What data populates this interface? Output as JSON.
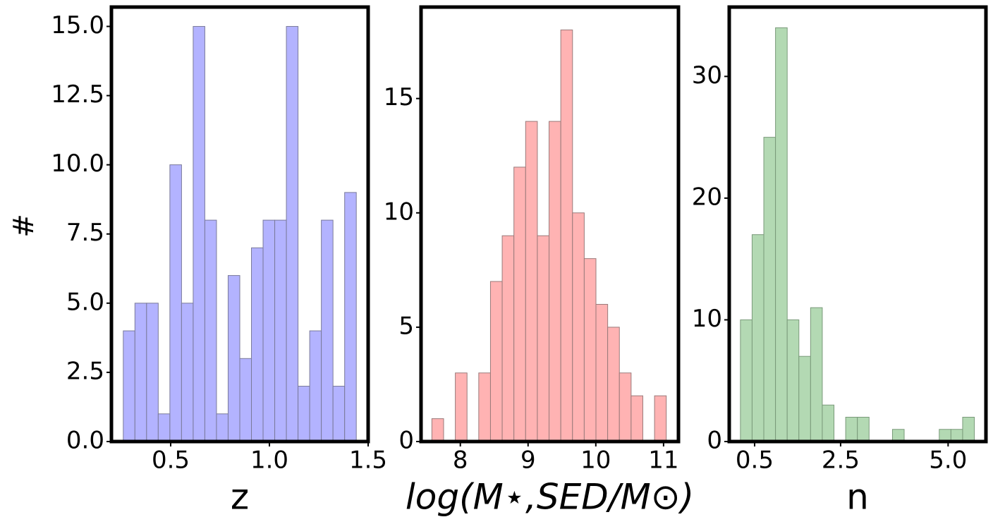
{
  "chart_data": [
    {
      "type": "histogram",
      "x_label": "z",
      "y_label": "#",
      "color": "#b3b3ff",
      "edgecolor": "#7a7a9a",
      "bins": [
        0.26,
        0.319,
        0.378,
        0.437,
        0.496,
        0.555,
        0.614,
        0.673,
        0.732,
        0.791,
        0.85,
        0.909,
        0.968,
        1.027,
        1.086,
        1.145,
        1.204,
        1.263,
        1.322,
        1.381,
        1.44
      ],
      "values": [
        4,
        5,
        5,
        1,
        10,
        5,
        15,
        8,
        1,
        6,
        3,
        7,
        8,
        8,
        15,
        2,
        4,
        8,
        2,
        9
      ],
      "xlim": [
        0.2,
        1.5
      ],
      "ylim": [
        0,
        15.7
      ],
      "xticks": [
        {
          "value": 0.5,
          "label": "0.5"
        },
        {
          "value": 1.0,
          "label": "1.0"
        },
        {
          "value": 1.5,
          "label": "1.5"
        }
      ],
      "yticks": [
        {
          "value": 0,
          "label": "0.0"
        },
        {
          "value": 2.5,
          "label": "2.5"
        },
        {
          "value": 5,
          "label": "5.0"
        },
        {
          "value": 7.5,
          "label": "7.5"
        },
        {
          "value": 10,
          "label": "10.0"
        },
        {
          "value": 12.5,
          "label": "12.5"
        },
        {
          "value": 15,
          "label": "15.0"
        }
      ]
    },
    {
      "type": "histogram",
      "x_label": "log(M⋆,SED/M⊙)",
      "color": "#ffb3b3",
      "edgecolor": "#9a7a7a",
      "bins": [
        7.58,
        7.753,
        7.926,
        8.099,
        8.272,
        8.445,
        8.618,
        8.791,
        8.964,
        9.137,
        9.31,
        9.483,
        9.656,
        9.829,
        10.002,
        10.175,
        10.348,
        10.521,
        10.694,
        10.867,
        11.04
      ],
      "values": [
        1,
        0,
        3,
        0,
        3,
        7,
        9,
        12,
        14,
        9,
        14,
        18,
        10,
        8,
        6,
        5,
        3,
        2,
        0,
        2
      ],
      "xlim": [
        7.42,
        11.22
      ],
      "ylim": [
        0,
        19
      ],
      "xticks": [
        8,
        9,
        10,
        11
      ],
      "yticks": [
        0,
        5,
        10,
        15
      ]
    },
    {
      "type": "histogram",
      "x_label": "n",
      "color": "#b3d9b3",
      "edgecolor": "#7a9a7a",
      "bins": [
        0.17,
        0.442,
        0.714,
        0.986,
        1.258,
        1.53,
        1.802,
        2.074,
        2.346,
        2.618,
        2.89,
        3.162,
        3.434,
        3.706,
        3.978,
        4.25,
        4.522,
        4.794,
        5.066,
        5.338,
        5.61
      ],
      "values": [
        10,
        17,
        25,
        34,
        10,
        7,
        11,
        3,
        0,
        2,
        2,
        0,
        0,
        1,
        0,
        0,
        0,
        1,
        1,
        2
      ],
      "xlim": [
        -0.09,
        5.88
      ],
      "ylim": [
        0,
        35.7
      ],
      "xticks": [
        {
          "value": 0.5,
          "label": "0.5"
        },
        {
          "value": 2.5,
          "label": "2.5"
        },
        {
          "value": 5.0,
          "label": "5.0"
        }
      ],
      "yticks": [
        0,
        10,
        20,
        30
      ]
    }
  ]
}
